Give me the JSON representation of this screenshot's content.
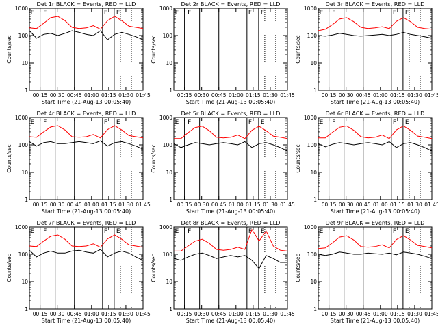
{
  "chart_data": [
    {
      "type": "line",
      "title": "Det 1r BLACK = Events, RED = LLD",
      "xlabel": "Start Time (21-Aug-13 00:05:40)",
      "ylabel": "Counts/sec",
      "yscale": "log",
      "ylim": [
        1,
        1000
      ],
      "x_ticks": [
        "00:15",
        "00:30",
        "00:45",
        "01:00",
        "01:15",
        "01:30",
        "01:45"
      ],
      "markers": [
        "E",
        "F",
        "F",
        "E"
      ],
      "series": [
        {
          "name": "Events",
          "color": "#000000",
          "values": [
            150,
            80,
            110,
            120,
            100,
            120,
            150,
            130,
            110,
            100,
            150,
            70,
            110,
            130,
            110,
            90,
            70
          ]
        },
        {
          "name": "LLD",
          "color": "#ff0000",
          "values": [
            190,
            180,
            280,
            450,
            500,
            350,
            200,
            180,
            190,
            230,
            170,
            350,
            500,
            350,
            220,
            200,
            180
          ]
        }
      ]
    },
    {
      "type": "line",
      "title": "Det 2r BLACK = Events, RED = LLD",
      "xlabel": "Start Time (21-Aug-13 00:05:40)",
      "ylabel": "Counts/sec",
      "yscale": "log",
      "ylim": [
        1,
        1000
      ],
      "x_ticks": [
        "00:15",
        "00:30",
        "00:45",
        "01:00",
        "01:15",
        "01:30",
        "01:45"
      ],
      "markers": [
        "E",
        "F",
        "F",
        "E"
      ],
      "series": []
    },
    {
      "type": "line",
      "title": "Det 3r BLACK = Events, RED = LLD",
      "xlabel": "Start Time (21-Aug-13 00:05:40)",
      "ylabel": "Counts/sec",
      "yscale": "log",
      "ylim": [
        1,
        1000
      ],
      "x_ticks": [
        "00:15",
        "00:30",
        "00:45",
        "01:00",
        "01:15",
        "01:30",
        "01:45"
      ],
      "markers": [
        "E",
        "F",
        "F",
        "E"
      ],
      "series": [
        {
          "name": "Events",
          "color": "#000000",
          "values": [
            100,
            95,
            105,
            120,
            110,
            100,
            95,
            100,
            105,
            110,
            100,
            110,
            130,
            110,
            100,
            90,
            80
          ]
        },
        {
          "name": "LLD",
          "color": "#ff0000",
          "values": [
            150,
            170,
            250,
            400,
            450,
            320,
            200,
            180,
            190,
            210,
            180,
            330,
            450,
            320,
            200,
            180,
            170
          ]
        }
      ]
    },
    {
      "type": "line",
      "title": "Det 4r BLACK = Events, RED = LLD",
      "xlabel": "Start Time (21-Aug-13 00:05:40)",
      "ylabel": "Counts/sec",
      "yscale": "log",
      "ylim": [
        1,
        1000
      ],
      "x_ticks": [
        "00:15",
        "00:30",
        "00:45",
        "01:00",
        "01:15",
        "01:30",
        "01:45"
      ],
      "markers": [
        "E",
        "F",
        "F",
        "E"
      ],
      "series": [
        {
          "name": "Events",
          "color": "#000000",
          "values": [
            130,
            90,
            120,
            130,
            110,
            110,
            120,
            130,
            120,
            110,
            140,
            90,
            120,
            130,
            110,
            90,
            70
          ]
        },
        {
          "name": "LLD",
          "color": "#ff0000",
          "values": [
            200,
            190,
            300,
            450,
            500,
            350,
            200,
            190,
            200,
            240,
            180,
            360,
            500,
            350,
            220,
            200,
            180
          ]
        }
      ]
    },
    {
      "type": "line",
      "title": "Det 5r BLACK = Events, RED = LLD",
      "xlabel": "Start Time (21-Aug-13 00:05:40)",
      "ylabel": "Counts/sec",
      "yscale": "log",
      "ylim": [
        1,
        1000
      ],
      "x_ticks": [
        "00:15",
        "00:30",
        "00:45",
        "01:00",
        "01:15",
        "01:30",
        "01:45"
      ],
      "markers": [
        "E",
        "F",
        "F",
        "E"
      ],
      "series": [
        {
          "name": "Events",
          "color": "#000000",
          "values": [
            110,
            80,
            100,
            120,
            110,
            100,
            110,
            120,
            110,
            100,
            130,
            80,
            110,
            120,
            100,
            80,
            60
          ]
        },
        {
          "name": "LLD",
          "color": "#ff0000",
          "values": [
            170,
            170,
            280,
            430,
            480,
            330,
            190,
            180,
            190,
            230,
            170,
            340,
            480,
            330,
            210,
            190,
            170
          ]
        }
      ]
    },
    {
      "type": "line",
      "title": "Det 6r BLACK = Events, RED = LLD",
      "xlabel": "Start Time (21-Aug-13 00:05:40)",
      "ylabel": "Counts/sec",
      "yscale": "log",
      "ylim": [
        1,
        1000
      ],
      "x_ticks": [
        "00:15",
        "00:30",
        "00:45",
        "01:00",
        "01:15",
        "01:30",
        "01:45"
      ],
      "markers": [
        "E",
        "F",
        "F",
        "E"
      ],
      "series": [
        {
          "name": "Events",
          "color": "#000000",
          "values": [
            110,
            85,
            105,
            120,
            110,
            100,
            110,
            120,
            110,
            100,
            130,
            80,
            110,
            120,
            100,
            80,
            60
          ]
        },
        {
          "name": "LLD",
          "color": "#ff0000",
          "values": [
            180,
            180,
            290,
            440,
            490,
            340,
            200,
            180,
            190,
            230,
            170,
            350,
            490,
            340,
            210,
            190,
            170
          ]
        }
      ]
    },
    {
      "type": "line",
      "title": "Det 7r BLACK = Events, RED = LLD",
      "xlabel": "Start Time (21-Aug-13 00:05:40)",
      "ylabel": "Counts/sec",
      "yscale": "log",
      "ylim": [
        1,
        1000
      ],
      "x_ticks": [
        "00:15",
        "00:30",
        "00:45",
        "01:00",
        "01:15",
        "01:30",
        "01:45"
      ],
      "markers": [
        "E",
        "F",
        "F",
        "E"
      ],
      "series": [
        {
          "name": "Events",
          "color": "#000000",
          "values": [
            140,
            80,
            110,
            130,
            110,
            110,
            130,
            140,
            120,
            110,
            150,
            80,
            110,
            130,
            110,
            80,
            60
          ]
        },
        {
          "name": "LLD",
          "color": "#ff0000",
          "values": [
            200,
            190,
            300,
            450,
            500,
            350,
            200,
            190,
            200,
            240,
            180,
            360,
            500,
            350,
            220,
            200,
            180
          ]
        }
      ]
    },
    {
      "type": "line",
      "title": "Det 8r BLACK = Events, RED = LLD",
      "xlabel": "Start Time (21-Aug-13 00:05:40)",
      "ylabel": "Counts/sec",
      "yscale": "log",
      "ylim": [
        1,
        1000
      ],
      "x_ticks": [
        "00:15",
        "00:30",
        "00:45",
        "01:00",
        "01:15",
        "01:30",
        "01:45"
      ],
      "markers": [
        "E",
        "F",
        "F",
        "E"
      ],
      "series": [
        {
          "name": "Events",
          "color": "#000000",
          "values": [
            70,
            60,
            80,
            100,
            110,
            90,
            70,
            80,
            90,
            80,
            90,
            60,
            30,
            90,
            70,
            50,
            50
          ]
        },
        {
          "name": "LLD",
          "color": "#ff0000",
          "values": [
            130,
            130,
            200,
            300,
            350,
            250,
            150,
            140,
            150,
            180,
            150,
            800,
            300,
            700,
            200,
            140,
            130
          ]
        }
      ]
    },
    {
      "type": "line",
      "title": "Det 9r BLACK = Events, RED = LLD",
      "xlabel": "Start Time (21-Aug-13 00:05:40)",
      "ylabel": "Counts/sec",
      "yscale": "log",
      "ylim": [
        1,
        1000
      ],
      "x_ticks": [
        "00:15",
        "00:30",
        "00:45",
        "01:00",
        "01:15",
        "01:30",
        "01:45"
      ],
      "markers": [
        "E",
        "F",
        "F",
        "E"
      ],
      "series": [
        {
          "name": "Events",
          "color": "#000000",
          "values": [
            100,
            90,
            100,
            120,
            110,
            100,
            100,
            110,
            105,
            100,
            110,
            95,
            120,
            110,
            100,
            85,
            70
          ]
        },
        {
          "name": "LLD",
          "color": "#ff0000",
          "values": [
            160,
            170,
            260,
            420,
            470,
            330,
            190,
            180,
            190,
            220,
            170,
            340,
            470,
            330,
            210,
            190,
            170
          ]
        }
      ]
    }
  ]
}
